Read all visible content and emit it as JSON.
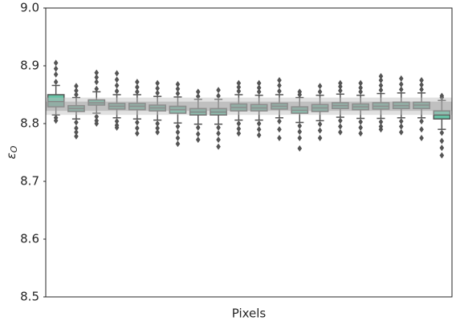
{
  "chart_data": {
    "type": "box",
    "xlabel": "Pixels",
    "ylabel": {
      "symbol": "ε",
      "subscript": "O"
    },
    "ylim": [
      8.5,
      9.0
    ],
    "yticks": [
      8.5,
      8.6,
      8.7,
      8.8,
      8.9,
      {
        "value": 9,
        "label": "9.0"
      }
    ],
    "color": "#66c2a5",
    "edge_color": "#555555",
    "bands": [
      {
        "range": [
          8.815,
          8.845
        ],
        "color": "#bdbdbd"
      },
      {
        "range": [
          8.822,
          8.838
        ],
        "color": "#9a9a9a"
      }
    ],
    "boxes": [
      {
        "q1": 8.829,
        "median": 8.838,
        "q3": 8.85,
        "whislo": 8.815,
        "whishi": 8.866,
        "fliers": [
          8.872,
          8.885,
          8.895,
          8.905,
          8.81,
          8.805
        ]
      },
      {
        "q1": 8.821,
        "median": 8.826,
        "q3": 8.831,
        "whislo": 8.808,
        "whishi": 8.845,
        "fliers": [
          8.85,
          8.857,
          8.865,
          8.802,
          8.792,
          8.785,
          8.778
        ]
      },
      {
        "q1": 8.832,
        "median": 8.836,
        "q3": 8.841,
        "whislo": 8.818,
        "whishi": 8.855,
        "fliers": [
          8.86,
          8.872,
          8.88,
          8.888,
          8.812,
          8.805,
          8.8
        ]
      },
      {
        "q1": 8.825,
        "median": 8.83,
        "q3": 8.835,
        "whislo": 8.81,
        "whishi": 8.85,
        "fliers": [
          8.856,
          8.866,
          8.876,
          8.887,
          8.804,
          8.797,
          8.793
        ]
      },
      {
        "q1": 8.824,
        "median": 8.83,
        "q3": 8.835,
        "whislo": 8.808,
        "whishi": 8.85,
        "fliers": [
          8.855,
          8.863,
          8.872,
          8.802,
          8.792,
          8.783
        ]
      },
      {
        "q1": 8.822,
        "median": 8.827,
        "q3": 8.832,
        "whislo": 8.806,
        "whishi": 8.847,
        "fliers": [
          8.853,
          8.861,
          8.87,
          8.8,
          8.792,
          8.785
        ]
      },
      {
        "q1": 8.818,
        "median": 8.824,
        "q3": 8.83,
        "whislo": 8.801,
        "whishi": 8.846,
        "fliers": [
          8.852,
          8.86,
          8.868,
          8.795,
          8.785,
          8.775,
          8.765
        ]
      },
      {
        "q1": 8.815,
        "median": 8.82,
        "q3": 8.826,
        "whislo": 8.799,
        "whishi": 8.842,
        "fliers": [
          8.847,
          8.855,
          8.793,
          8.782,
          8.772
        ]
      },
      {
        "q1": 8.815,
        "median": 8.82,
        "q3": 8.826,
        "whislo": 8.799,
        "whishi": 8.842,
        "fliers": [
          8.848,
          8.858,
          8.793,
          8.783,
          8.772,
          8.76
        ]
      },
      {
        "q1": 8.822,
        "median": 8.828,
        "q3": 8.834,
        "whislo": 8.806,
        "whishi": 8.85,
        "fliers": [
          8.856,
          8.863,
          8.87,
          8.8,
          8.791,
          8.783
        ]
      },
      {
        "q1": 8.822,
        "median": 8.827,
        "q3": 8.833,
        "whislo": 8.806,
        "whishi": 8.849,
        "fliers": [
          8.855,
          8.862,
          8.87,
          8.8,
          8.79,
          8.78
        ]
      },
      {
        "q1": 8.825,
        "median": 8.83,
        "q3": 8.835,
        "whislo": 8.81,
        "whishi": 8.85,
        "fliers": [
          8.856,
          8.866,
          8.875,
          8.804,
          8.79,
          8.775
        ]
      },
      {
        "q1": 8.818,
        "median": 8.823,
        "q3": 8.829,
        "whislo": 8.802,
        "whishi": 8.845,
        "fliers": [
          8.85,
          8.855,
          8.796,
          8.786,
          8.775,
          8.757
        ]
      },
      {
        "q1": 8.821,
        "median": 8.827,
        "q3": 8.833,
        "whislo": 8.805,
        "whishi": 8.849,
        "fliers": [
          8.855,
          8.865,
          8.799,
          8.788,
          8.775
        ]
      },
      {
        "q1": 8.826,
        "median": 8.831,
        "q3": 8.836,
        "whislo": 8.811,
        "whishi": 8.851,
        "fliers": [
          8.857,
          8.864,
          8.87,
          8.805,
          8.795,
          8.785
        ]
      },
      {
        "q1": 8.824,
        "median": 8.829,
        "q3": 8.834,
        "whislo": 8.809,
        "whishi": 8.849,
        "fliers": [
          8.855,
          8.862,
          8.87,
          8.803,
          8.793,
          8.783
        ]
      },
      {
        "q1": 8.825,
        "median": 8.83,
        "q3": 8.836,
        "whislo": 8.809,
        "whishi": 8.852,
        "fliers": [
          8.858,
          8.866,
          8.875,
          8.882,
          8.803,
          8.795,
          8.79
        ]
      },
      {
        "q1": 8.826,
        "median": 8.831,
        "q3": 8.837,
        "whislo": 8.81,
        "whishi": 8.853,
        "fliers": [
          8.859,
          8.868,
          8.878,
          8.804,
          8.795,
          8.785
        ]
      },
      {
        "q1": 8.826,
        "median": 8.832,
        "q3": 8.837,
        "whislo": 8.81,
        "whishi": 8.853,
        "fliers": [
          8.859,
          8.867,
          8.875,
          8.804,
          8.79,
          8.775
        ]
      },
      {
        "q1": 8.808,
        "median": 8.815,
        "q3": 8.822,
        "whislo": 8.79,
        "whishi": 8.84,
        "fliers": [
          8.845,
          8.848,
          8.784,
          8.77,
          8.758,
          8.745
        ]
      }
    ]
  }
}
